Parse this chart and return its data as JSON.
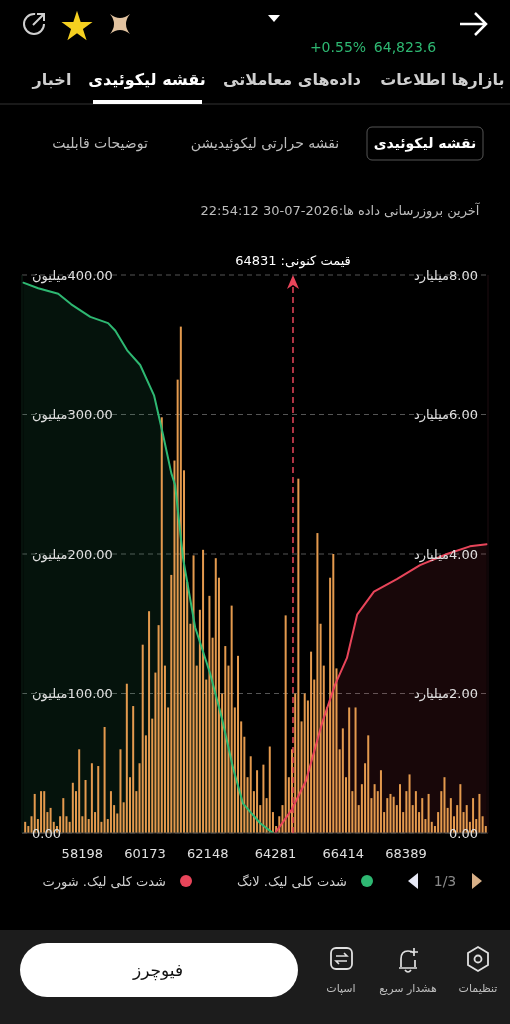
{
  "chart_data": {
    "type": "bar",
    "xlim": [
      56300,
      70970
    ],
    "xticks": [
      58198,
      60173,
      62148,
      64281,
      66414,
      68389
    ],
    "ylim": [
      0,
      400
    ],
    "yticks": [
      {
        "value": 0,
        "label": "0.00"
      },
      {
        "value": 100,
        "label": "100.00میلیون"
      },
      {
        "value": 200,
        "label": "200.00میلیون"
      },
      {
        "value": 300,
        "label": "300.00میلیون"
      },
      {
        "value": 400,
        "label": "400.00میلیون"
      }
    ],
    "y2lim": [
      0,
      8
    ],
    "y2ticks": [
      {
        "value": 0,
        "label": "0.00"
      },
      {
        "value": 2,
        "label": "2.00میلیارد"
      },
      {
        "value": 4,
        "label": "4.00میلیارد"
      },
      {
        "value": 6,
        "label": "6.00میلیارد"
      },
      {
        "value": 8,
        "label": "8.00میلیارد"
      }
    ],
    "grid": "y",
    "legend": "bottom",
    "series": [
      {
        "color": "#e49a4e",
        "x": [
          56400,
          56500,
          56600,
          56700,
          56800,
          56900,
          57000,
          57100,
          57200,
          57300,
          57400,
          57500,
          57600,
          57700,
          57800,
          57900,
          58000,
          58100,
          58200,
          58300,
          58400,
          58500,
          58600,
          58700,
          58800,
          58900,
          59000,
          59100,
          59200,
          59300,
          59400,
          59500,
          59600,
          59700,
          59800,
          59900,
          60000,
          60100,
          60200,
          60300,
          60400,
          60500,
          60600,
          60700,
          60800,
          60900,
          61000,
          61100,
          61200,
          61300,
          61400,
          61500,
          61600,
          61700,
          61800,
          61900,
          62000,
          62100,
          62200,
          62300,
          62400,
          62500,
          62600,
          62700,
          62800,
          62900,
          63000,
          63100,
          63200,
          63300,
          63400,
          63500,
          63600,
          63700,
          63800,
          63900,
          64000,
          64100,
          64200,
          64300,
          64400,
          64500,
          64600,
          64700,
          64800,
          64900,
          65000,
          65100,
          65200,
          65300,
          65400,
          65500,
          65600,
          65700,
          65800,
          65900,
          66000,
          66100,
          66200,
          66300,
          66400,
          66500,
          66600,
          66700,
          66800,
          66900,
          67000,
          67100,
          67200,
          67300,
          67400,
          67500,
          67600,
          67700,
          67800,
          67900,
          68000,
          68100,
          68200,
          68300,
          68400,
          68500,
          68600,
          68700,
          68800,
          68900,
          69000,
          69100,
          69200,
          69300,
          69400,
          69500,
          69600,
          69700,
          69800,
          69900,
          70000,
          70100,
          70200,
          70300,
          70400,
          70500,
          70600,
          70700,
          70800,
          70900
        ],
        "values": [
          8,
          5,
          12,
          28,
          10,
          30,
          30,
          15,
          18,
          8,
          5,
          12,
          25,
          12,
          8,
          36,
          30,
          60,
          12,
          38,
          10,
          50,
          15,
          48,
          8,
          76,
          10,
          30,
          20,
          14,
          60,
          22,
          107,
          40,
          91,
          30,
          50,
          135,
          70,
          159,
          82,
          115,
          149,
          298,
          120,
          90,
          185,
          267,
          325,
          363,
          260,
          180,
          150,
          199,
          120,
          160,
          203,
          110,
          170,
          140,
          197,
          183,
          100,
          134,
          120,
          163,
          90,
          127,
          80,
          69,
          40,
          55,
          30,
          45,
          20,
          49,
          25,
          62,
          15,
          5,
          12,
          20,
          156,
          40,
          60,
          100,
          254,
          80,
          100,
          95,
          130,
          110,
          215,
          150,
          120,
          90,
          183,
          200,
          118,
          60,
          75,
          40,
          90,
          30,
          90,
          20,
          35,
          50,
          70,
          25,
          35,
          30,
          45,
          15,
          25,
          28,
          26,
          20,
          35,
          15,
          30,
          42,
          20,
          30,
          15,
          25,
          10,
          28,
          8,
          5,
          15,
          30,
          40,
          18,
          25,
          12,
          20,
          35,
          15,
          20,
          8,
          25,
          10,
          28,
          12,
          5
        ]
      },
      {
        "type": "area",
        "name": "شدت کلی لیک. لانگ",
        "color": "#2eb872",
        "axis": "y2",
        "x": [
          56340,
          56810,
          57440,
          57850,
          58450,
          59010,
          59240,
          59610,
          60020,
          60460,
          60740,
          61000,
          61120,
          61370,
          61750,
          62220,
          62600,
          62950,
          63260,
          63800,
          64200
        ],
        "values": [
          7.89,
          7.81,
          7.73,
          7.58,
          7.4,
          7.31,
          7.2,
          6.92,
          6.71,
          6.27,
          5.71,
          5.16,
          4.99,
          3.94,
          2.95,
          2.29,
          1.63,
          0.92,
          0.42,
          0.14,
          0
        ]
      },
      {
        "type": "area",
        "name": "شدت کلی لیک. شورت",
        "color": "#e8455a",
        "axis": "y2",
        "x": [
          64270,
          64770,
          65240,
          65750,
          66150,
          66530,
          66850,
          67380,
          68100,
          68830,
          69680,
          70400,
          70930
        ],
        "values": [
          0,
          0.32,
          0.75,
          1.58,
          2.12,
          2.51,
          3.13,
          3.46,
          3.64,
          3.84,
          4.0,
          4.11,
          4.14
        ]
      }
    ],
    "ref_lines": [
      {
        "axis": "x",
        "value": 64831,
        "label": "قیمت کنونی: 64831",
        "color": "#e8455a",
        "line_style": "dashed"
      }
    ],
    "annotations": [
      "+0.55%",
      "64,823.6",
      "بازارها",
      "اطلاعات",
      "داده‌های معاملاتی",
      "نقشه لیکوئیدی",
      "اخبار",
      "نقشه لیکوئیدی",
      "نقشه حرارتی لیکوئیدیشن",
      "توضیحات قابلیت",
      "آخرین بروزرسانی داده ها:2026-07-30 22:54:12",
      "1/3",
      "فیوچرز",
      "اسپات",
      "هشدار سریع",
      "تنظیمات"
    ]
  }
}
